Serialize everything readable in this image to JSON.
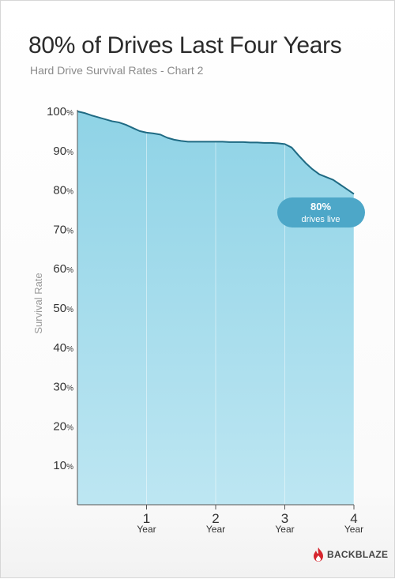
{
  "header": {
    "title": "80% of Drives Last Four Years",
    "subtitle": "Hard Drive Survival Rates - Chart 2"
  },
  "brand": {
    "name": "BACKBLAZE",
    "icon": "flame-icon",
    "color": "#d6262e"
  },
  "colors": {
    "area_top": "#8fd3e6",
    "area_bottom": "#bde6f2",
    "line": "#1f6a83",
    "callout": "#4da7c8"
  },
  "callout": {
    "value": "80%",
    "text": "drives live"
  },
  "chart_data": {
    "type": "area",
    "title": "80% of Drives Last Four Years",
    "subtitle": "Hard Drive Survival Rates - Chart 2",
    "ylabel": "Survival Rate",
    "xlabel": "",
    "xlim": [
      0,
      4
    ],
    "ylim": [
      0,
      100
    ],
    "yticks": [
      10,
      20,
      30,
      40,
      50,
      60,
      70,
      80,
      90,
      100
    ],
    "ytick_suffix": "%",
    "xticks": [
      1,
      2,
      3,
      4
    ],
    "xtick_sublabel": "Year",
    "grid": "vertical",
    "x": [
      0,
      0.1,
      0.2,
      0.3,
      0.4,
      0.5,
      0.6,
      0.7,
      0.8,
      0.9,
      1.0,
      1.1,
      1.2,
      1.3,
      1.4,
      1.5,
      1.6,
      1.7,
      1.8,
      1.9,
      2.0,
      2.1,
      2.2,
      2.3,
      2.4,
      2.5,
      2.6,
      2.7,
      2.8,
      2.9,
      3.0,
      3.1,
      3.2,
      3.3,
      3.4,
      3.5,
      3.6,
      3.7,
      3.8,
      3.9,
      4.0
    ],
    "series": [
      {
        "values": [
          100,
          99.6,
          99.0,
          98.5,
          98.0,
          97.5,
          97.2,
          96.6,
          95.8,
          95.0,
          94.6,
          94.4,
          94.1,
          93.3,
          92.8,
          92.5,
          92.3,
          92.3,
          92.3,
          92.3,
          92.3,
          92.3,
          92.2,
          92.2,
          92.2,
          92.1,
          92.1,
          92.0,
          92.0,
          91.9,
          91.7,
          90.8,
          88.8,
          86.9,
          85.3,
          84.0,
          83.3,
          82.6,
          81.4,
          80.2,
          79.0
        ]
      }
    ]
  }
}
